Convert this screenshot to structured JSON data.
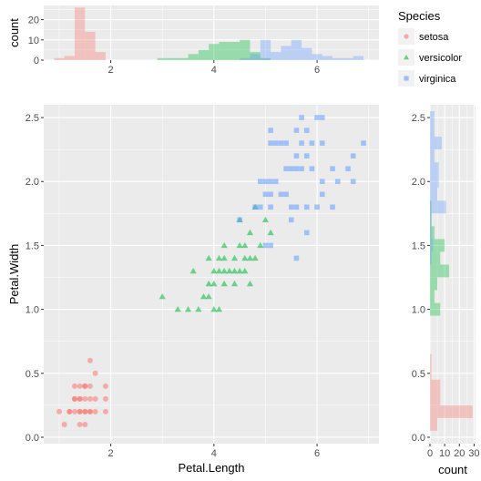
{
  "chart_data": [
    {
      "type": "scatter",
      "panel": "main",
      "xlabel": "Petal.Length",
      "ylabel": "Petal.Width",
      "xlim": [
        0.7,
        7.2
      ],
      "ylim": [
        -0.05,
        2.6
      ],
      "x_ticks": [
        2,
        4,
        6
      ],
      "y_ticks": [
        0.0,
        0.5,
        1.0,
        1.5,
        2.0,
        2.5
      ],
      "x_tick_labels": [
        "2",
        "4",
        "6"
      ],
      "y_tick_labels": [
        "0.0",
        "0.5",
        "1.0",
        "1.5",
        "2.0",
        "2.5"
      ],
      "grid": true,
      "series": [
        {
          "name": "setosa",
          "color": "#F8766D",
          "shape": "circle",
          "points": [
            [
              1.0,
              0.2
            ],
            [
              1.1,
              0.1
            ],
            [
              1.2,
              0.2
            ],
            [
              1.2,
              0.2
            ],
            [
              1.3,
              0.2
            ],
            [
              1.3,
              0.3
            ],
            [
              1.3,
              0.4
            ],
            [
              1.4,
              0.2
            ],
            [
              1.4,
              0.1
            ],
            [
              1.4,
              0.3
            ],
            [
              1.4,
              0.2
            ],
            [
              1.5,
              0.2
            ],
            [
              1.5,
              0.4
            ],
            [
              1.5,
              0.1
            ],
            [
              1.5,
              0.3
            ],
            [
              1.5,
              0.2
            ],
            [
              1.6,
              0.2
            ],
            [
              1.6,
              0.4
            ],
            [
              1.6,
              0.6
            ],
            [
              1.6,
              0.2
            ],
            [
              1.7,
              0.3
            ],
            [
              1.7,
              0.5
            ],
            [
              1.7,
              0.2
            ],
            [
              1.9,
              0.2
            ],
            [
              1.9,
              0.4
            ],
            [
              1.4,
              0.4
            ],
            [
              1.5,
              0.4
            ],
            [
              1.3,
              0.3
            ],
            [
              1.4,
              0.3
            ],
            [
              1.6,
              0.3
            ],
            [
              1.9,
              0.3
            ]
          ]
        },
        {
          "name": "versicolor",
          "color": "#00BA38",
          "shape": "triangle",
          "points": [
            [
              3.0,
              1.1
            ],
            [
              3.3,
              1.0
            ],
            [
              3.5,
              1.0
            ],
            [
              3.6,
              1.3
            ],
            [
              3.7,
              1.0
            ],
            [
              3.8,
              1.1
            ],
            [
              3.9,
              1.1
            ],
            [
              3.9,
              1.2
            ],
            [
              3.9,
              1.4
            ],
            [
              4.0,
              1.0
            ],
            [
              4.0,
              1.2
            ],
            [
              4.0,
              1.3
            ],
            [
              4.1,
              1.0
            ],
            [
              4.1,
              1.3
            ],
            [
              4.2,
              1.2
            ],
            [
              4.2,
              1.3
            ],
            [
              4.2,
              1.5
            ],
            [
              4.3,
              1.3
            ],
            [
              4.4,
              1.2
            ],
            [
              4.4,
              1.3
            ],
            [
              4.4,
              1.4
            ],
            [
              4.5,
              1.3
            ],
            [
              4.5,
              1.5
            ],
            [
              4.5,
              1.7
            ],
            [
              4.6,
              1.3
            ],
            [
              4.6,
              1.4
            ],
            [
              4.6,
              1.5
            ],
            [
              4.7,
              1.2
            ],
            [
              4.7,
              1.4
            ],
            [
              4.7,
              1.6
            ],
            [
              4.8,
              1.4
            ],
            [
              4.8,
              1.8
            ],
            [
              4.9,
              1.5
            ],
            [
              5.0,
              1.7
            ],
            [
              5.1,
              1.6
            ],
            [
              4.2,
              1.4
            ],
            [
              4.1,
              1.4
            ]
          ]
        },
        {
          "name": "virginica",
          "color": "#619CFF",
          "shape": "square",
          "points": [
            [
              4.5,
              1.7
            ],
            [
              4.8,
              1.8
            ],
            [
              4.9,
              1.8
            ],
            [
              4.9,
              2.0
            ],
            [
              5.0,
              1.5
            ],
            [
              5.0,
              1.9
            ],
            [
              5.0,
              2.0
            ],
            [
              5.1,
              1.5
            ],
            [
              5.1,
              1.8
            ],
            [
              5.1,
              1.9
            ],
            [
              5.1,
              2.0
            ],
            [
              5.1,
              2.3
            ],
            [
              5.1,
              2.4
            ],
            [
              5.2,
              2.0
            ],
            [
              5.2,
              2.3
            ],
            [
              5.3,
              1.9
            ],
            [
              5.3,
              2.3
            ],
            [
              5.4,
              2.1
            ],
            [
              5.4,
              2.3
            ],
            [
              5.5,
              1.8
            ],
            [
              5.5,
              2.1
            ],
            [
              5.5,
              1.7
            ],
            [
              5.6,
              1.4
            ],
            [
              5.6,
              1.8
            ],
            [
              5.6,
              2.1
            ],
            [
              5.6,
              2.2
            ],
            [
              5.6,
              2.4
            ],
            [
              5.7,
              2.1
            ],
            [
              5.7,
              2.3
            ],
            [
              5.7,
              2.5
            ],
            [
              5.8,
              1.6
            ],
            [
              5.8,
              1.8
            ],
            [
              5.8,
              2.2
            ],
            [
              5.9,
              2.1
            ],
            [
              5.9,
              2.3
            ],
            [
              6.0,
              1.8
            ],
            [
              6.0,
              2.5
            ],
            [
              6.1,
              1.9
            ],
            [
              6.1,
              2.3
            ],
            [
              6.1,
              2.5
            ],
            [
              6.3,
              1.8
            ],
            [
              6.4,
              2.0
            ],
            [
              6.6,
              2.1
            ],
            [
              6.7,
              2.0
            ],
            [
              6.7,
              2.2
            ],
            [
              6.9,
              2.3
            ],
            [
              5.8,
              2.4
            ],
            [
              6.3,
              2.1
            ],
            [
              6.1,
              2.0
            ],
            [
              5.4,
              1.9
            ]
          ]
        }
      ]
    },
    {
      "type": "bar",
      "panel": "top-histogram",
      "xlabel": "",
      "ylabel": "count",
      "xlim": [
        0.7,
        7.2
      ],
      "ylim": [
        0,
        27
      ],
      "y_ticks": [
        0,
        10,
        20
      ],
      "y_tick_labels": [
        "0",
        "10",
        "20"
      ],
      "bin_width": 0.2,
      "series": [
        {
          "name": "setosa",
          "color": "#F8766D",
          "bins": [
            [
              1.0,
              1
            ],
            [
              1.2,
              2
            ],
            [
              1.4,
              26
            ],
            [
              1.6,
              14
            ],
            [
              1.8,
              4
            ],
            [
              2.0,
              0
            ]
          ]
        },
        {
          "name": "versicolor",
          "color": "#00BA38",
          "bins": [
            [
              3.0,
              1
            ],
            [
              3.2,
              1
            ],
            [
              3.4,
              1
            ],
            [
              3.6,
              3
            ],
            [
              3.8,
              5
            ],
            [
              4.0,
              8
            ],
            [
              4.2,
              9
            ],
            [
              4.4,
              9
            ],
            [
              4.6,
              10
            ],
            [
              4.8,
              4
            ],
            [
              5.0,
              1
            ]
          ]
        },
        {
          "name": "virginica",
          "color": "#619CFF",
          "bins": [
            [
              4.6,
              1
            ],
            [
              4.8,
              3
            ],
            [
              5.0,
              10
            ],
            [
              5.2,
              4
            ],
            [
              5.4,
              7
            ],
            [
              5.6,
              10
            ],
            [
              5.8,
              6
            ],
            [
              6.0,
              3
            ],
            [
              6.2,
              2
            ],
            [
              6.4,
              1
            ],
            [
              6.6,
              1
            ],
            [
              6.8,
              2
            ]
          ]
        }
      ]
    },
    {
      "type": "bar",
      "panel": "right-histogram",
      "orientation": "horizontal",
      "xlabel": "count",
      "ylabel": "",
      "xlim": [
        0,
        31
      ],
      "x_ticks": [
        0,
        10,
        20,
        30
      ],
      "x_tick_labels": [
        "0",
        "10",
        "20",
        "30"
      ],
      "y_ticks": [
        0.0,
        0.5,
        1.0,
        1.5,
        2.0,
        2.5
      ],
      "y_tick_labels": [
        "0.0",
        "0.5",
        "1.0",
        "1.5",
        "2.0",
        "2.5"
      ],
      "ylim": [
        -0.05,
        2.6
      ],
      "bin_width": 0.1,
      "series": [
        {
          "name": "setosa",
          "color": "#F8766D",
          "bins": [
            [
              0.1,
              5
            ],
            [
              0.2,
              29
            ],
            [
              0.3,
              7
            ],
            [
              0.4,
              7
            ],
            [
              0.5,
              1
            ],
            [
              0.6,
              1
            ]
          ]
        },
        {
          "name": "versicolor",
          "color": "#00BA38",
          "bins": [
            [
              1.0,
              7
            ],
            [
              1.1,
              3
            ],
            [
              1.2,
              5
            ],
            [
              1.3,
              13
            ],
            [
              1.4,
              7
            ],
            [
              1.5,
              10
            ],
            [
              1.6,
              3
            ],
            [
              1.7,
              1
            ],
            [
              1.8,
              1
            ]
          ]
        },
        {
          "name": "virginica",
          "color": "#619CFF",
          "bins": [
            [
              1.4,
              1
            ],
            [
              1.5,
              2
            ],
            [
              1.6,
              1
            ],
            [
              1.7,
              1
            ],
            [
              1.8,
              11
            ],
            [
              1.9,
              5
            ],
            [
              2.0,
              6
            ],
            [
              2.1,
              6
            ],
            [
              2.2,
              3
            ],
            [
              2.3,
              8
            ],
            [
              2.4,
              3
            ],
            [
              2.5,
              3
            ]
          ]
        }
      ]
    }
  ],
  "legend": {
    "title": "Species",
    "placement": "top-right",
    "items": [
      {
        "label": "setosa",
        "color": "#F8766D",
        "shape": "circle"
      },
      {
        "label": "versicolor",
        "color": "#00BA38",
        "shape": "triangle"
      },
      {
        "label": "virginica",
        "color": "#619CFF",
        "shape": "square"
      }
    ]
  }
}
